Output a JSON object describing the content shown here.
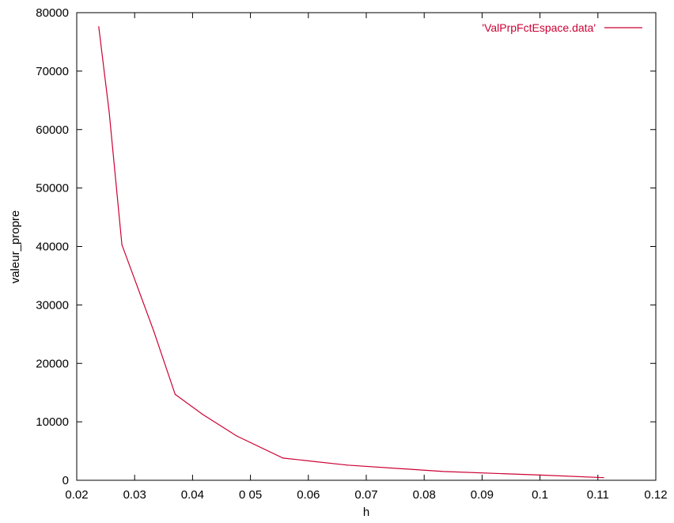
{
  "chart_data": {
    "type": "line",
    "xlabel": "h",
    "ylabel": "valeur_propre",
    "xlim": [
      0.02,
      0.12
    ],
    "ylim": [
      0,
      80000
    ],
    "x_ticks": [
      "0.02",
      "0.03",
      "0.04",
      "0 05",
      "0.06",
      "0.07",
      "0.08",
      "0.09",
      "0.1",
      "0.11",
      "0.12"
    ],
    "x_tick_values": [
      0.02,
      0.03,
      0.04,
      0.05,
      0.06,
      0.07,
      0.08,
      0.09,
      0.1,
      0.11,
      0.12
    ],
    "y_ticks": [
      "0",
      "10000",
      "20000",
      "30000",
      "40000",
      "50000",
      "60000",
      "70000",
      "80000"
    ],
    "y_tick_values": [
      0,
      10000,
      20000,
      30000,
      40000,
      50000,
      60000,
      70000,
      80000
    ],
    "grid": false,
    "legend_position": "top-right",
    "series": [
      {
        "name": "'ValPrpFctEspace.data'",
        "color": "#cc0033",
        "x": [
          0.0238,
          0.0256,
          0.0278,
          0.0333,
          0.037,
          0.0417,
          0.0476,
          0.0556,
          0.0667,
          0.0833,
          0.1,
          0.111
        ],
        "y": [
          77600,
          63000,
          40300,
          25500,
          14700,
          11300,
          7600,
          3800,
          2600,
          1500,
          900,
          450
        ]
      }
    ]
  }
}
